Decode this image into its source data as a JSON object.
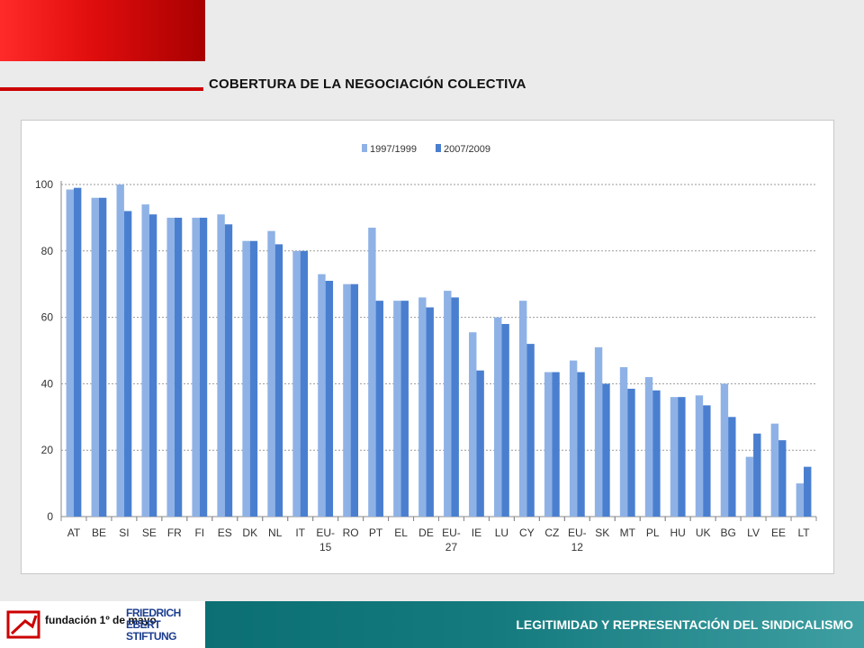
{
  "slide": {
    "title": "COBERTURA DE LA NEGOCIACIÓN COLECTIVA",
    "footer_text": "LEGITIMIDAD Y REPRESENTACIÓN DEL SINDICALISMO",
    "logo_fundacion": "fundación 1º de mayo",
    "logo_fes": "FRIEDRICH EBERT STIFTUNG"
  },
  "colors": {
    "series_light": "#8fb2e6",
    "series_dark": "#4a7fd0",
    "accent_red": "#cc0000",
    "footer_teal": "#0b6f73"
  },
  "chart_data": {
    "type": "bar",
    "title": "",
    "xlabel": "",
    "ylabel": "",
    "ylim": [
      0,
      100
    ],
    "yticks": [
      0,
      20,
      40,
      60,
      80,
      100
    ],
    "grid": true,
    "legend_position": "top-center",
    "categories": [
      "AT",
      "BE",
      "SI",
      "SE",
      "FR",
      "FI",
      "ES",
      "DK",
      "NL",
      "IT",
      "EU-15",
      "RO",
      "PT",
      "EL",
      "DE",
      "EU-27",
      "IE",
      "LU",
      "CY",
      "CZ",
      "EU-12",
      "SK",
      "MT",
      "PL",
      "HU",
      "UK",
      "BG",
      "LV",
      "EE",
      "LT"
    ],
    "series": [
      {
        "name": "1997/1999",
        "values": [
          98.5,
          96,
          100,
          94,
          90,
          90,
          91,
          83,
          86,
          80,
          73,
          70,
          87,
          65,
          66,
          68,
          55.5,
          60,
          65,
          43.5,
          47,
          51,
          45,
          42,
          36,
          36.5,
          40,
          18,
          28,
          10
        ]
      },
      {
        "name": "2007/2009",
        "values": [
          99,
          96,
          92,
          91,
          90,
          90,
          88,
          83,
          82,
          80,
          71,
          70,
          65,
          65,
          63,
          66,
          44,
          58,
          52,
          43.5,
          43.5,
          40,
          38.5,
          38,
          36,
          33.5,
          30,
          25,
          23,
          15
        ]
      }
    ]
  }
}
